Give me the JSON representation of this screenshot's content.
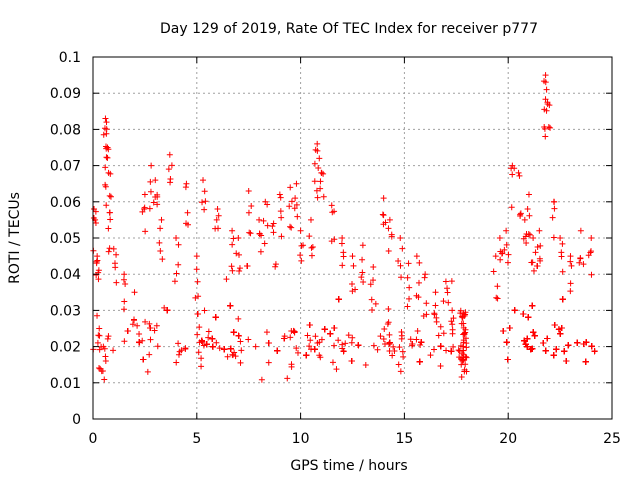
{
  "chart_data": {
    "type": "scatter",
    "title": "Day 129 of 2019, Rate Of TEC Index for receiver p777",
    "xlabel": "GPS time / hours",
    "ylabel": "ROTI / TECUs",
    "xlim": [
      0,
      25
    ],
    "ylim": [
      0,
      0.1
    ],
    "xticks": [
      "0",
      "5",
      "10",
      "15",
      "20",
      "25"
    ],
    "yticks": [
      "0",
      "0.01",
      "0.02",
      "0.03",
      "0.04",
      "0.05",
      "0.06",
      "0.07",
      "0.08",
      "0.09",
      "0.1"
    ],
    "grid": true,
    "marker": "+",
    "colors": {
      "series": "#ff0000"
    },
    "series": [
      {
        "values_note": "dense red plus markers",
        "x": [
          0.05,
          0.1,
          0.2,
          0.3,
          0.5,
          0.6,
          0.65,
          0.7,
          0.75,
          0.8,
          1.0,
          1.5,
          2.0,
          2.5,
          2.8,
          3.0,
          3.3,
          3.7,
          4.0,
          4.5,
          5.0,
          5.3,
          6.0,
          6.7,
          7.0,
          7.5,
          8.0,
          8.3,
          8.7,
          9.0,
          9.5,
          9.8,
          10.0,
          10.5,
          10.8,
          10.9,
          11.0,
          11.5,
          12.0,
          12.5,
          13.0,
          13.5,
          14.0,
          14.3,
          14.8,
          15.2,
          15.6,
          16.0,
          16.5,
          17.0,
          17.3,
          17.8,
          19.4,
          19.6,
          19.9,
          20.2,
          20.5,
          20.8,
          21.0,
          21.2,
          21.5,
          21.8,
          21.85,
          21.9,
          22.2,
          22.5,
          23.0,
          23.5,
          24.0
        ],
        "y": [
          0.058,
          0.055,
          0.045,
          0.025,
          0.02,
          0.083,
          0.082,
          0.075,
          0.068,
          0.057,
          0.047,
          0.04,
          0.035,
          0.062,
          0.07,
          0.066,
          0.055,
          0.073,
          0.05,
          0.065,
          0.045,
          0.066,
          0.058,
          0.052,
          0.05,
          0.063,
          0.055,
          0.06,
          0.054,
          0.062,
          0.064,
          0.065,
          0.052,
          0.055,
          0.076,
          0.072,
          0.068,
          0.059,
          0.05,
          0.045,
          0.048,
          0.042,
          0.061,
          0.055,
          0.05,
          0.043,
          0.045,
          0.04,
          0.035,
          0.038,
          0.03,
          0.028,
          0.045,
          0.05,
          0.052,
          0.07,
          0.068,
          0.055,
          0.062,
          0.05,
          0.052,
          0.095,
          0.091,
          0.087,
          0.06,
          0.05,
          0.045,
          0.052,
          0.05
        ]
      }
    ]
  }
}
